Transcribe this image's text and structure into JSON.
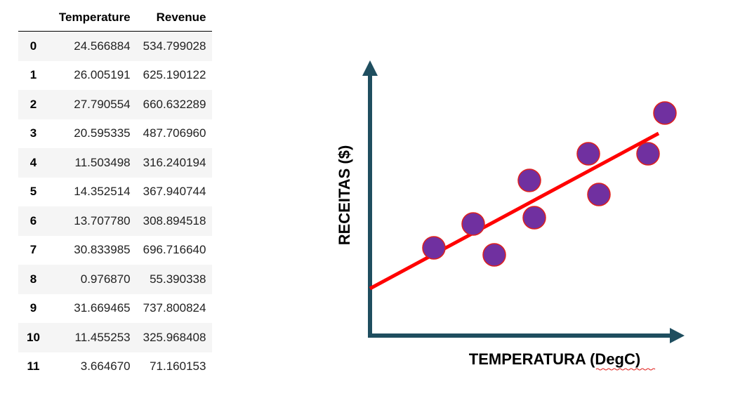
{
  "table": {
    "columns": [
      "",
      "Temperature",
      "Revenue"
    ],
    "rows": [
      [
        "0",
        "24.566884",
        "534.799028"
      ],
      [
        "1",
        "26.005191",
        "625.190122"
      ],
      [
        "2",
        "27.790554",
        "660.632289"
      ],
      [
        "3",
        "20.595335",
        "487.706960"
      ],
      [
        "4",
        "11.503498",
        "316.240194"
      ],
      [
        "5",
        "14.352514",
        "367.940744"
      ],
      [
        "6",
        "13.707780",
        "308.894518"
      ],
      [
        "7",
        "30.833985",
        "696.716640"
      ],
      [
        "8",
        "0.976870",
        "55.390338"
      ],
      [
        "9",
        "31.669465",
        "737.800824"
      ],
      [
        "10",
        "11.455253",
        "325.968408"
      ],
      [
        "11",
        "3.664670",
        "71.160153"
      ]
    ]
  },
  "diagram": {
    "y_label": "RECEITAS ($)",
    "x_label": "TEMPERATURA (DegC)",
    "colors": {
      "axis": "#1f4e5f",
      "points": "#7030a0",
      "point_edge": "#e0201c",
      "trend_line": "#ff0000"
    }
  }
}
